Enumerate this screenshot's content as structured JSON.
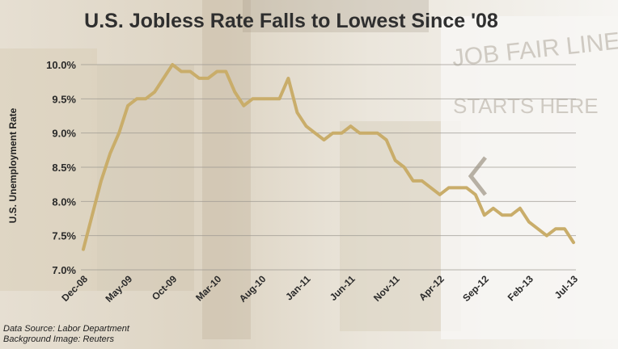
{
  "title": "U.S. Jobless Rate Falls to Lowest Since '08",
  "background_sign": {
    "line1": "JOB FAIR LINE",
    "line2": "STARTS HERE"
  },
  "source": {
    "line1": "Data Source: Labor Department",
    "line2": "Background Image: Reuters"
  },
  "chart_data": {
    "type": "line",
    "title": "U.S. Jobless Rate Falls to Lowest Since '08",
    "xlabel": "",
    "ylabel": "U.S. Unemployment Rate",
    "ylim": [
      7.0,
      10.0
    ],
    "yticks": [
      "7.0%",
      "7.5%",
      "8.0%",
      "8.5%",
      "9.0%",
      "9.5%",
      "10.0%"
    ],
    "xticks": [
      "Dec-08",
      "May-09",
      "Oct-09",
      "Mar-10",
      "Aug-10",
      "Jan-11",
      "Jun-11",
      "Nov-11",
      "Apr-12",
      "Sep-12",
      "Feb-13",
      "Jul-13"
    ],
    "grid": "horizontal",
    "line_color": "#c9ad6a",
    "x": [
      "Dec-08",
      "Jan-09",
      "Feb-09",
      "Mar-09",
      "Apr-09",
      "May-09",
      "Jun-09",
      "Jul-09",
      "Aug-09",
      "Sep-09",
      "Oct-09",
      "Nov-09",
      "Dec-09",
      "Jan-10",
      "Feb-10",
      "Mar-10",
      "Apr-10",
      "May-10",
      "Jun-10",
      "Jul-10",
      "Aug-10",
      "Sep-10",
      "Oct-10",
      "Nov-10",
      "Dec-10",
      "Jan-11",
      "Feb-11",
      "Mar-11",
      "Apr-11",
      "May-11",
      "Jun-11",
      "Jul-11",
      "Aug-11",
      "Sep-11",
      "Oct-11",
      "Nov-11",
      "Dec-11",
      "Jan-12",
      "Feb-12",
      "Mar-12",
      "Apr-12",
      "May-12",
      "Jun-12",
      "Jul-12",
      "Aug-12",
      "Sep-12",
      "Oct-12",
      "Nov-12",
      "Dec-12",
      "Jan-13",
      "Feb-13",
      "Mar-13",
      "Apr-13",
      "May-13",
      "Jun-13",
      "Jul-13"
    ],
    "values": [
      7.3,
      7.8,
      8.3,
      8.7,
      9.0,
      9.4,
      9.5,
      9.5,
      9.6,
      9.8,
      10.0,
      9.9,
      9.9,
      9.8,
      9.8,
      9.9,
      9.9,
      9.6,
      9.4,
      9.5,
      9.5,
      9.5,
      9.5,
      9.8,
      9.3,
      9.1,
      9.0,
      8.9,
      9.0,
      9.0,
      9.1,
      9.0,
      9.0,
      9.0,
      8.9,
      8.6,
      8.5,
      8.3,
      8.3,
      8.2,
      8.1,
      8.2,
      8.2,
      8.2,
      8.1,
      7.8,
      7.9,
      7.8,
      7.8,
      7.9,
      7.7,
      7.6,
      7.5,
      7.6,
      7.6,
      7.4
    ]
  }
}
